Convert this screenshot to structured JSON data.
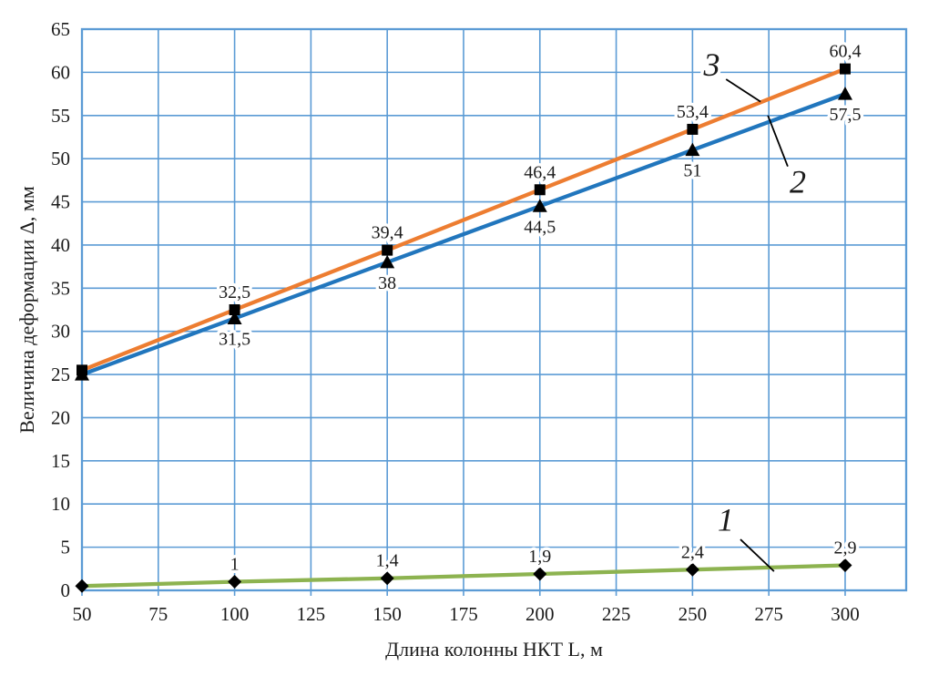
{
  "page": {
    "background": "#ffffff"
  },
  "chart_data": {
    "type": "line",
    "title": "",
    "xlabel": "Длина колонны НКТ L, м",
    "ylabel": "Величина деформации Δ, мм",
    "x": [
      50,
      100,
      150,
      200,
      250,
      300
    ],
    "xlim": [
      50,
      320
    ],
    "ylim": [
      0,
      65
    ],
    "x_ticks": [
      50,
      75,
      100,
      125,
      150,
      175,
      200,
      225,
      250,
      275,
      300
    ],
    "x_tick_labels": [
      "50",
      "75",
      "100",
      "125",
      "150",
      "175",
      "200",
      "225",
      "250",
      "275",
      "300"
    ],
    "y_ticks": [
      0,
      5,
      10,
      15,
      20,
      25,
      30,
      35,
      40,
      45,
      50,
      55,
      60,
      65
    ],
    "y_tick_labels": [
      "0",
      "5",
      "10",
      "15",
      "20",
      "25",
      "30",
      "35",
      "40",
      "45",
      "50",
      "55",
      "60",
      "65"
    ],
    "grid": true,
    "legend": "none",
    "colors": {
      "grid": "#5B9BD5",
      "axis_border": "#5B9BD5",
      "text": "#1b1b1b",
      "marker": "#000000",
      "halo": "#ffffff"
    },
    "series": [
      {
        "name": "1",
        "color": "#8DB350",
        "marker": "diamond",
        "label_position": "above",
        "values": [
          0.5,
          1,
          1.4,
          1.9,
          2.4,
          2.9
        ],
        "point_labels": [
          "",
          "1",
          "1,4",
          "1,9",
          "2,4",
          "2,9"
        ]
      },
      {
        "name": "2",
        "color": "#2176BD",
        "marker": "triangle",
        "label_position": "below",
        "values": [
          25,
          31.5,
          38,
          44.5,
          51,
          57.5
        ],
        "point_labels": [
          "",
          "31,5",
          "38",
          "44,5",
          "51",
          "57,5"
        ]
      },
      {
        "name": "3",
        "color": "#ED7D31",
        "marker": "square",
        "label_position": "above",
        "values": [
          25.5,
          32.5,
          39.4,
          46.4,
          53.4,
          60.4
        ],
        "point_labels": [
          "",
          "32,5",
          "39,4",
          "46,4",
          "53,4",
          "60,4"
        ]
      }
    ],
    "callouts": [
      {
        "text": "1",
        "label_x": 260.9,
        "label_y": 8.2,
        "line": [
          [
            265.7,
            5.9
          ],
          [
            276.7,
            2.2
          ]
        ]
      },
      {
        "text": "2",
        "label_x": 284.5,
        "label_y": 47.3,
        "line": [
          [
            281.2,
            49.1
          ],
          [
            274.7,
            55.0
          ]
        ]
      },
      {
        "text": "3",
        "label_x": 256.3,
        "label_y": 60.9,
        "line": [
          [
            261.0,
            59.2
          ],
          [
            272.3,
            56.6
          ]
        ]
      }
    ]
  }
}
